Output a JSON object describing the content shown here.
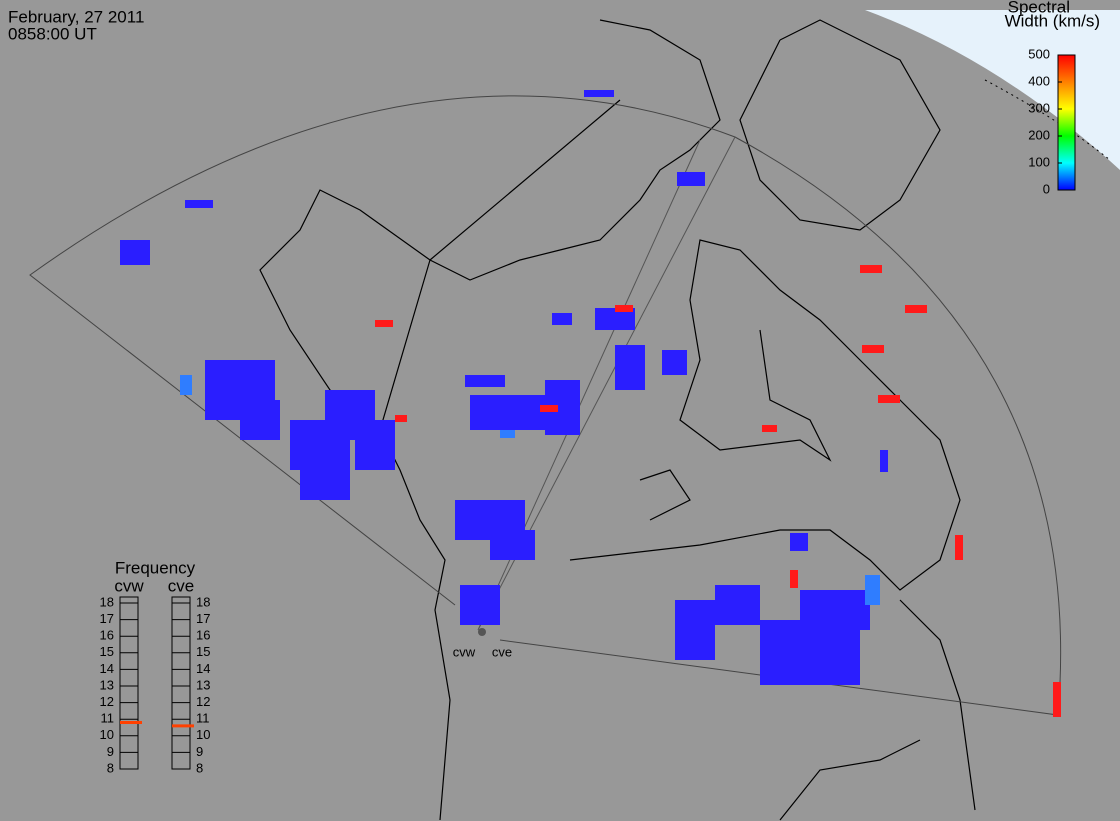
{
  "header": {
    "date": "February, 27 2011",
    "time": "0858:00 UT"
  },
  "colorbar": {
    "title": [
      "Spectral",
      "Width (km/s)"
    ],
    "ylim": [
      0,
      500
    ],
    "yticks": [
      0,
      100,
      200,
      300,
      400,
      500
    ],
    "colors": [
      "#0000ff",
      "#00ffff",
      "#00ff00",
      "#ffff00",
      "#ff8000",
      "#ff0000"
    ]
  },
  "frequency": {
    "title": "Frequency",
    "ylim": [
      8,
      18
    ],
    "yticks": [
      8,
      9,
      10,
      11,
      12,
      13,
      14,
      15,
      16,
      17,
      18
    ],
    "radars": [
      {
        "name": "cvw",
        "value": 10.8,
        "color": "#ff4000"
      },
      {
        "name": "cve",
        "value": 10.6,
        "color": "#ff4000"
      }
    ]
  },
  "sites": [
    "cvw",
    "cve"
  ]
}
